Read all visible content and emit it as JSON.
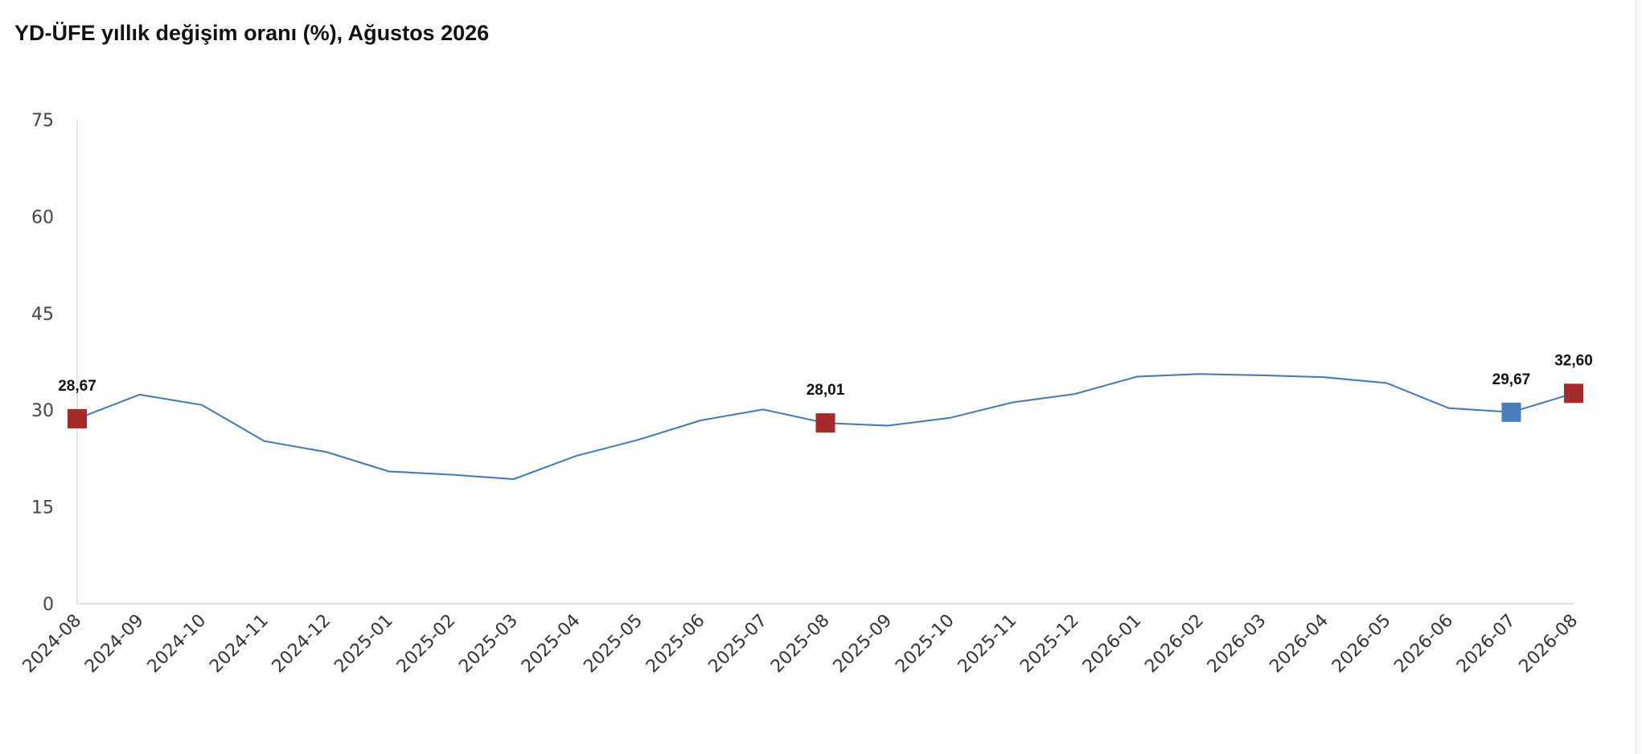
{
  "chart_data": {
    "type": "line",
    "title": "YD-ÜFE yıllık değişim oranı (%), Ağustos 2026",
    "xlabel": "",
    "ylabel": "",
    "ylim": [
      0,
      75
    ],
    "yticks": [
      "0",
      "15",
      "30",
      "45",
      "60",
      "75"
    ],
    "grid": false,
    "legend": "none",
    "categories": [
      "2024-08",
      "2024-09",
      "2024-10",
      "2024-11",
      "2024-12",
      "2025-01",
      "2025-02",
      "2025-03",
      "2025-04",
      "2025-05",
      "2025-06",
      "2025-07",
      "2025-08",
      "2025-09",
      "2025-10",
      "2025-11",
      "2025-12",
      "2026-01",
      "2026-02",
      "2026-03",
      "2026-04",
      "2026-05",
      "2026-06",
      "2026-07",
      "2026-08"
    ],
    "series": [
      {
        "values": [
          28.67,
          32.4,
          30.8,
          25.2,
          23.5,
          20.5,
          20.0,
          19.3,
          22.9,
          25.4,
          28.4,
          30.1,
          28.01,
          27.6,
          28.8,
          31.2,
          32.5,
          35.2,
          35.6,
          35.4,
          35.1,
          34.2,
          30.3,
          29.67,
          32.6
        ],
        "color": "#3f78b5"
      }
    ],
    "markers": [
      {
        "category": "2024-08",
        "value": 28.67,
        "label": "28,67",
        "color": "#a52a2a"
      },
      {
        "category": "2025-08",
        "value": 28.01,
        "label": "28,01",
        "color": "#a52a2a"
      },
      {
        "category": "2026-07",
        "value": 29.67,
        "label": "29,67",
        "color": "#4a7ebb"
      },
      {
        "category": "2026-08",
        "value": 32.6,
        "label": "32,60",
        "color": "#a52a2a"
      }
    ],
    "colors": {
      "line": "#3f78b5",
      "axis": "#d9d9d9"
    }
  }
}
